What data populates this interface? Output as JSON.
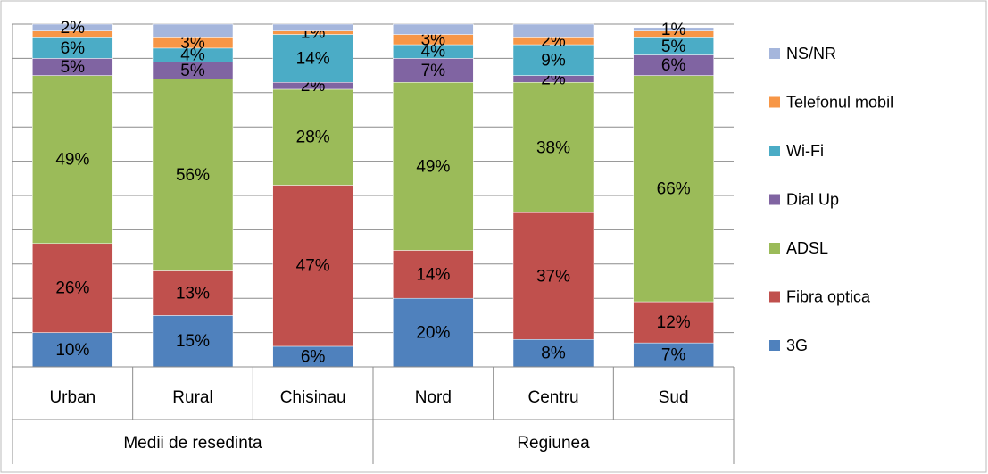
{
  "chart_data": {
    "type": "bar",
    "stacked": true,
    "categories": [
      "Urban",
      "Rural",
      "Chisinau",
      "Nord",
      "Centru",
      "Sud"
    ],
    "groups": [
      {
        "name": "Medii de resedinta",
        "size": 3
      },
      {
        "name": "Regiunea",
        "size": 3
      }
    ],
    "ylim": [
      0,
      100
    ],
    "yticks": [
      0,
      10,
      20,
      30,
      40,
      50,
      60,
      70,
      80,
      90,
      100
    ],
    "grid": true,
    "series": [
      {
        "name": "3G",
        "color": "#4f81bd",
        "values": [
          10,
          15,
          6,
          20,
          8,
          7
        ],
        "value_labels": [
          "10%",
          "15%",
          "6%",
          "20%",
          "8%",
          "7%"
        ]
      },
      {
        "name": "Fibra optica",
        "color": "#c0504d",
        "values": [
          26,
          13,
          47,
          14,
          37,
          12
        ],
        "value_labels": [
          "26%",
          "13%",
          "47%",
          "14%",
          "37%",
          "12%"
        ]
      },
      {
        "name": "ADSL",
        "color": "#9bbb59",
        "values": [
          49,
          56,
          28,
          49,
          38,
          66
        ],
        "value_labels": [
          "49%",
          "56%",
          "28%",
          "49%",
          "38%",
          "66%"
        ]
      },
      {
        "name": "Dial Up",
        "color": "#8064a2",
        "values": [
          5,
          5,
          2,
          7,
          2,
          6
        ],
        "value_labels": [
          "5%",
          "5%",
          "2%",
          "7%",
          "2%",
          "6%"
        ]
      },
      {
        "name": "Wi-Fi",
        "color": "#4bacc6",
        "values": [
          6,
          4,
          14,
          4,
          9,
          5
        ],
        "value_labels": [
          "6%",
          "4%",
          "14%",
          "4%",
          "9%",
          "5%"
        ]
      },
      {
        "name": "Telefonul mobil",
        "color": "#f79646",
        "values": [
          2,
          3,
          1,
          3,
          2,
          2
        ],
        "value_labels": [
          null,
          "3%",
          "1%",
          "3%",
          "2%",
          null
        ]
      },
      {
        "name": "NS/NR",
        "color": "#a5b6dc",
        "values": [
          2,
          4,
          2,
          3,
          4,
          1
        ],
        "value_labels": [
          "2%",
          null,
          null,
          null,
          null,
          "1%"
        ]
      }
    ]
  }
}
